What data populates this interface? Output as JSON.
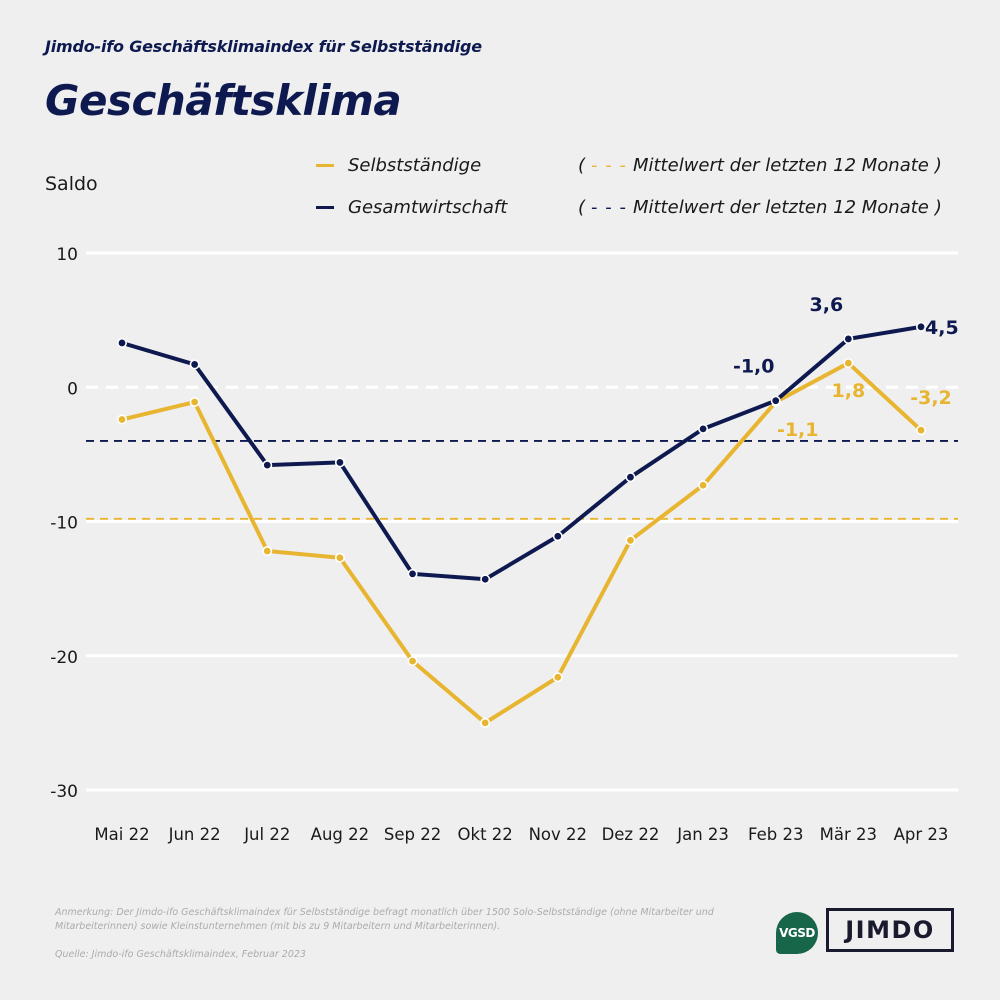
{
  "header": {
    "subtitle": "Jimdo-ifo Geschäftsklimaindex für Selbstständige",
    "title": "Geschäftsklima"
  },
  "colors": {
    "selbststaendige": "#e8b531",
    "gesamtwirtschaft": "#0e1a4f",
    "background": "#efefef",
    "grid": "#ffffff"
  },
  "legend": {
    "series": [
      {
        "label": "Selbstständige",
        "color": "#e8b531"
      },
      {
        "label": "Gesamtwirtschaft",
        "color": "#0e1a4f"
      }
    ],
    "means": [
      {
        "open": "(",
        "dash": "- - -",
        "label": "Mittelwert der letzten 12 Monate",
        "close": ")",
        "color": "#e8b531"
      },
      {
        "open": "(",
        "dash": "- - -",
        "label": "Mittelwert der letzten 12 Monate",
        "close": ")",
        "color": "#0e1a4f"
      }
    ]
  },
  "chart_data": {
    "type": "line",
    "title": "Geschäftsklima",
    "subtitle": "Jimdo-ifo Geschäftsklimaindex für Selbstständige",
    "xlabel": "",
    "ylabel": "Saldo",
    "ylim": [
      -30,
      10
    ],
    "yticks": [
      10,
      0,
      -10,
      -20,
      -30
    ],
    "ytick_labels": [
      "10",
      "0",
      "-10",
      "-20",
      "-30"
    ],
    "grid": true,
    "legend_position": "top",
    "categories": [
      "Mai 22",
      "Jun 22",
      "Jul 22",
      "Aug 22",
      "Sep 22",
      "Okt 22",
      "Nov 22",
      "Dez 22",
      "Jan 23",
      "Feb 23",
      "Mär 23",
      "Apr 23"
    ],
    "series": [
      {
        "name": "Selbstständige",
        "color": "#e8b531",
        "values": [
          -2.4,
          -1.1,
          -12.2,
          -12.7,
          -20.4,
          -25.0,
          -21.6,
          -11.4,
          -7.3,
          -1.1,
          1.8,
          -3.2
        ],
        "mean": -9.8
      },
      {
        "name": "Gesamtwirtschaft",
        "color": "#0e1a4f",
        "values": [
          3.3,
          1.7,
          -5.8,
          -5.6,
          -13.9,
          -14.3,
          -11.1,
          -6.7,
          -3.1,
          -1.0,
          3.6,
          4.5
        ],
        "mean": -4.0
      }
    ],
    "annotations": [
      {
        "series": "Gesamtwirtschaft",
        "category": "Feb 23",
        "text": "-1,0",
        "anchor": "above-left"
      },
      {
        "series": "Gesamtwirtschaft",
        "category": "Mär 23",
        "text": "3,6",
        "anchor": "above-left"
      },
      {
        "series": "Gesamtwirtschaft",
        "category": "Apr 23",
        "text": "4,5",
        "anchor": "right"
      },
      {
        "series": "Selbstständige",
        "category": "Feb 23",
        "text": "-1,1",
        "anchor": "below-right"
      },
      {
        "series": "Selbstständige",
        "category": "Mär 23",
        "text": "1,8",
        "anchor": "below"
      },
      {
        "series": "Selbstständige",
        "category": "Apr 23",
        "text": "-3,2",
        "anchor": "above"
      }
    ]
  },
  "footer": {
    "note": "Anmerkung: Der Jimdo-ifo Geschäftsklimaindex für Selbstständige befragt monatlich über 1500 Solo-Selbstständige (ohne Mitarbeiter und Mitarbeiterinnen) sowie Kleinstunternehmen (mit bis zu 9 Mitarbeitern und Mitarbeiterinnen).",
    "source": "Quelle: Jimdo-ifo Geschäftsklimaindex, Februar 2023",
    "logo_vgsd": "VGSD",
    "logo_jimdo": "JIMDO"
  }
}
